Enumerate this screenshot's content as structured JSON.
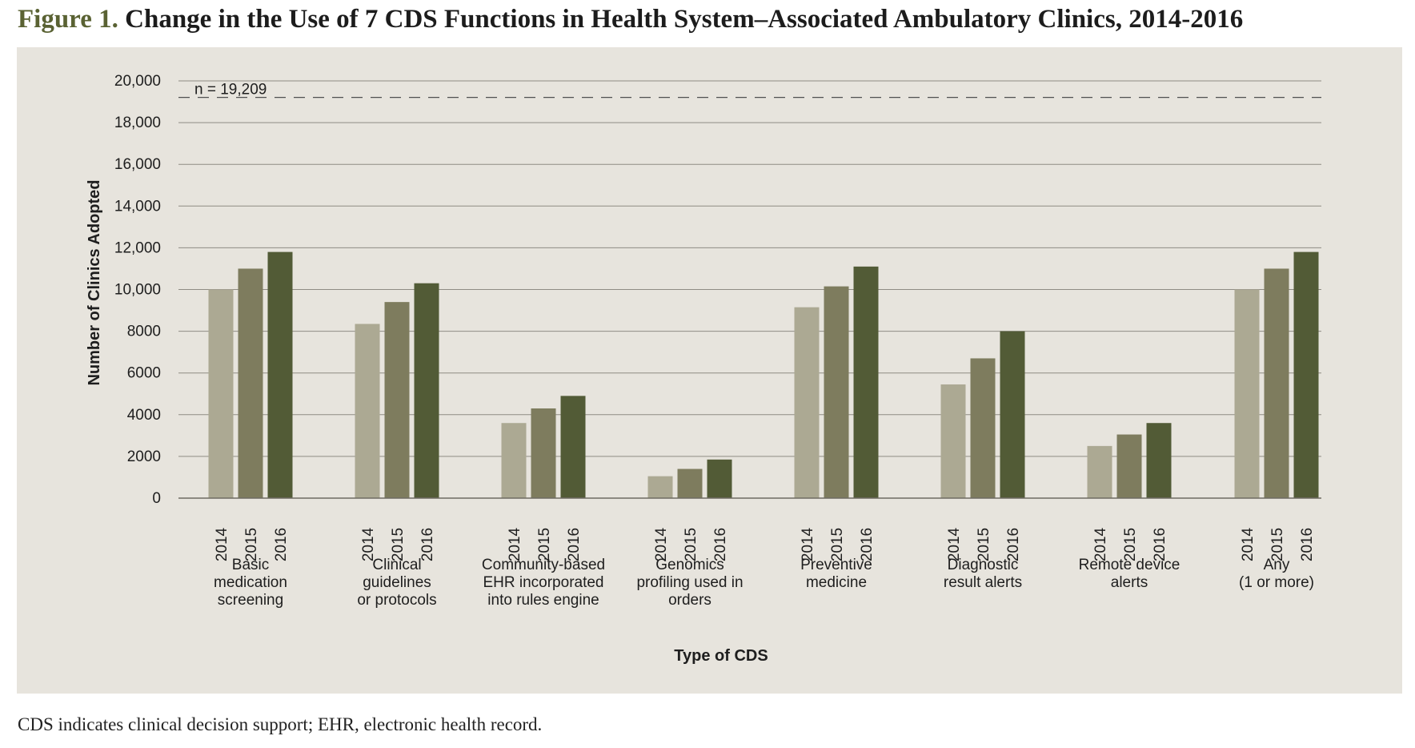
{
  "figure": {
    "label": "Figure 1.",
    "title": "Change in the Use of 7 CDS Functions in Health System–Associated Ambulatory Clinics, 2014-2016",
    "footnote": "CDS indicates clinical decision support; EHR, electronic health record."
  },
  "chart_data": {
    "type": "bar",
    "xlabel": "Type of CDS",
    "ylabel": "Number of Clinics Adopted",
    "ylim": [
      0,
      20000
    ],
    "yticks": [
      0,
      2000,
      4000,
      6000,
      8000,
      10000,
      12000,
      14000,
      16000,
      18000,
      20000
    ],
    "ytick_labels": [
      "0",
      "2000",
      "4000",
      "6000",
      "8000",
      "10,000",
      "12,000",
      "14,000",
      "16,000",
      "18,000",
      "20,000"
    ],
    "grid": true,
    "reference_line": {
      "value": 19209,
      "label": "n = 19,209"
    },
    "years": [
      "2014",
      "2015",
      "2016"
    ],
    "series_colors": [
      "#aca993",
      "#7e7c5e",
      "#525b36"
    ],
    "categories": [
      {
        "lines": [
          "Basic",
          "medication",
          "screening"
        ],
        "values": [
          10000,
          11000,
          11800
        ]
      },
      {
        "lines": [
          "Clinical",
          "guidelines",
          "or protocols"
        ],
        "values": [
          8350,
          9400,
          10300
        ]
      },
      {
        "lines": [
          "Community-based",
          "EHR incorporated",
          "into rules engine"
        ],
        "values": [
          3600,
          4300,
          4900
        ]
      },
      {
        "lines": [
          "Genomics",
          "profiling used in",
          "orders"
        ],
        "values": [
          1050,
          1400,
          1850
        ]
      },
      {
        "lines": [
          "Preventive",
          "medicine"
        ],
        "values": [
          9150,
          10150,
          11100
        ]
      },
      {
        "lines": [
          "Diagnostic",
          "result alerts"
        ],
        "values": [
          5450,
          6700,
          8000
        ]
      },
      {
        "lines": [
          "Remote device",
          "alerts"
        ],
        "values": [
          2500,
          3050,
          3600
        ]
      },
      {
        "lines": [
          "Any",
          "(1 or more)"
        ],
        "values": [
          10000,
          11000,
          11800
        ]
      }
    ]
  }
}
